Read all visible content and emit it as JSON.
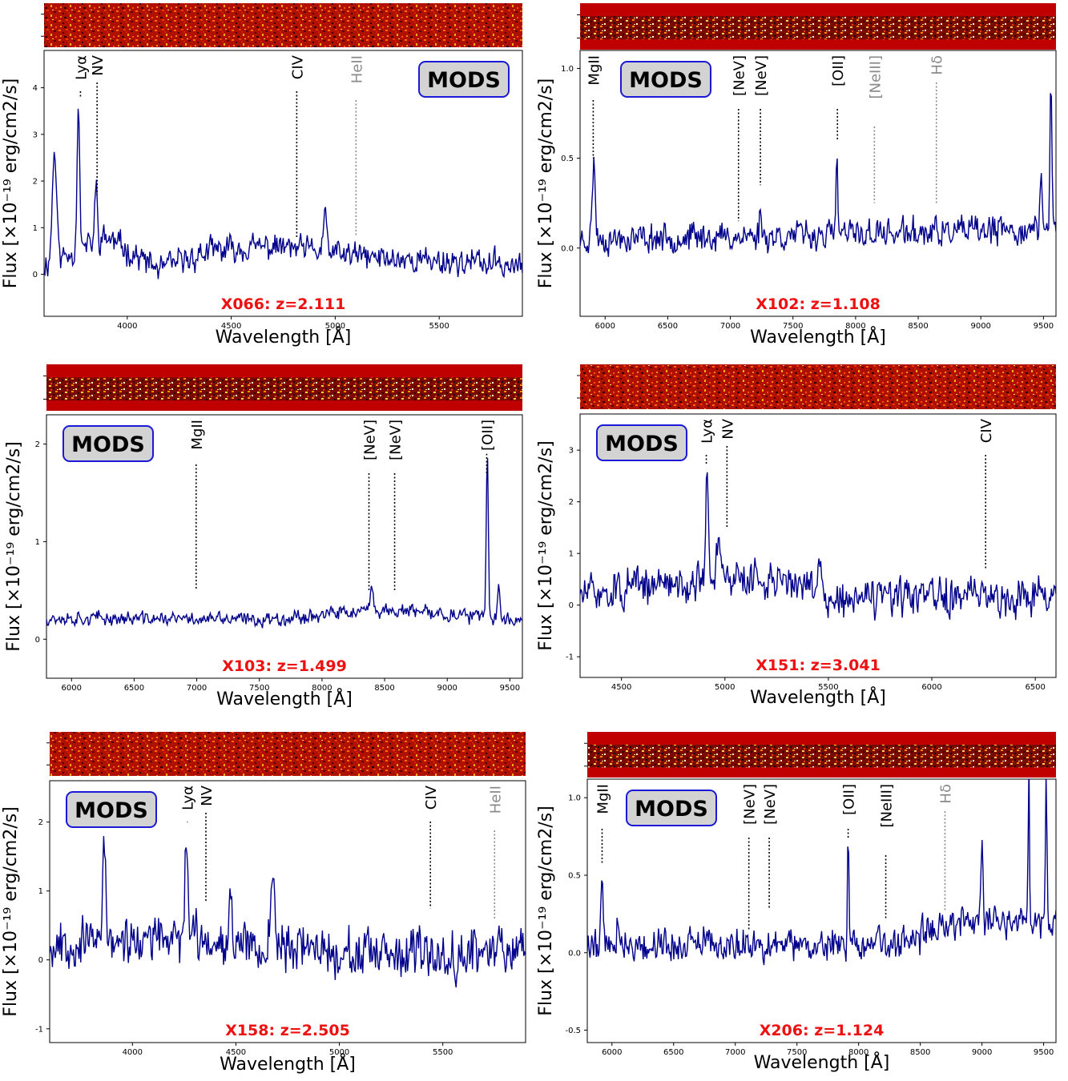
{
  "badge_label": "MODS",
  "colors": {
    "spectrum": "#00008b",
    "line_black": "#000000",
    "line_gray": "#8a8a8a",
    "redshift_label": "#ee1111",
    "badge_fill": "#d3d3d3",
    "badge_border": "#1a1ad6",
    "strip_base": "#c00000"
  },
  "chart_data": [
    {
      "type": "line",
      "object_label": "X066: z=2.111",
      "xlabel": "Wavelength [Å]",
      "ylabel": "Flux [×10⁻¹⁹ erg/cm2/s]",
      "xlim": [
        3600,
        5900
      ],
      "ylim": [
        -0.9,
        4.8
      ],
      "xticks": [
        4000,
        4500,
        5000,
        5500
      ],
      "yticks": [
        0,
        1,
        2,
        3,
        4
      ],
      "mods_position": "top-right",
      "label_position": "bottom-center",
      "strip_style": "noise",
      "series_features": {
        "baseline": [
          [
            3600,
            0.2
          ],
          [
            3900,
            0.8
          ],
          [
            4150,
            0.1
          ],
          [
            4400,
            0.5
          ],
          [
            4700,
            0.6
          ],
          [
            5200,
            0.35
          ],
          [
            5900,
            0.2
          ]
        ],
        "noise": 0.32,
        "seed": 11,
        "peaks": [
          [
            3650,
            2.4,
            10
          ],
          [
            3765,
            3.3,
            6
          ],
          [
            3850,
            1.2,
            6
          ],
          [
            4950,
            0.8,
            8
          ]
        ]
      },
      "lines": [
        {
          "label": "Lyα",
          "x": 3775,
          "y_bottom": 3.8,
          "color": "black"
        },
        {
          "label": "NV",
          "x": 3855,
          "y_bottom": 1.7,
          "color": "black"
        },
        {
          "label": "CIV",
          "x": 4815,
          "y_bottom": 0.8,
          "color": "black"
        },
        {
          "label": "HeII",
          "x": 5100,
          "y_bottom": 0.8,
          "color": "gray"
        }
      ]
    },
    {
      "type": "line",
      "object_label": "X102: z=1.108",
      "xlabel": "Wavelength [Å]",
      "ylabel": "Flux [×10⁻¹⁹ erg/cm2/s]",
      "xlim": [
        5800,
        9600
      ],
      "ylim": [
        -0.38,
        1.1
      ],
      "xticks": [
        6000,
        6500,
        7000,
        7500,
        8000,
        8500,
        9000,
        9500
      ],
      "yticks": [
        0.0,
        0.5,
        1.0
      ],
      "ytick_format": 1,
      "mods_position": "top-left",
      "label_position": "bottom-center",
      "strip_style": "band",
      "series_features": {
        "baseline": [
          [
            5800,
            0.05
          ],
          [
            7500,
            0.07
          ],
          [
            9600,
            0.1
          ]
        ],
        "noise": 0.09,
        "seed": 23,
        "peaks": [
          [
            5910,
            0.42,
            12
          ],
          [
            7850,
            0.5,
            6
          ],
          [
            7240,
            0.15,
            8
          ],
          [
            9560,
            0.8,
            8
          ],
          [
            9480,
            0.35,
            8
          ]
        ]
      },
      "lines": [
        {
          "label": "MgII",
          "x": 5905,
          "y_bottom": 0.5,
          "color": "black"
        },
        {
          "label": "[NeV]",
          "x": 7065,
          "y_bottom": 0.15,
          "color": "black"
        },
        {
          "label": "[NeV]",
          "x": 7240,
          "y_bottom": 0.35,
          "color": "black"
        },
        {
          "label": "[OII]",
          "x": 7855,
          "y_bottom": 0.6,
          "color": "black"
        },
        {
          "label": "[NeIII]",
          "x": 8150,
          "y_bottom": 0.25,
          "color": "gray"
        },
        {
          "label": "Hδ",
          "x": 8645,
          "y_bottom": 0.25,
          "color": "gray"
        }
      ]
    },
    {
      "type": "line",
      "object_label": "X103: z=1.499",
      "xlabel": "Wavelength [Å]",
      "ylabel": "Flux [×10⁻¹⁹ erg/cm2/s]",
      "xlim": [
        5800,
        9600
      ],
      "ylim": [
        -0.4,
        2.3
      ],
      "xticks": [
        6000,
        6500,
        7000,
        7500,
        8000,
        8500,
        9000,
        9500
      ],
      "yticks": [
        0,
        1,
        2
      ],
      "mods_position": "top-left",
      "label_position": "bottom-center",
      "strip_style": "band",
      "series_features": {
        "baseline": [
          [
            5800,
            0.22
          ],
          [
            7500,
            0.2
          ],
          [
            8500,
            0.3
          ],
          [
            9600,
            0.2
          ]
        ],
        "noise": 0.08,
        "seed": 37,
        "peaks": [
          [
            9320,
            1.65,
            8
          ],
          [
            8400,
            0.25,
            10
          ],
          [
            9410,
            0.35,
            8
          ]
        ]
      },
      "lines": [
        {
          "label": "MgII",
          "x": 6995,
          "y_bottom": 0.5,
          "color": "black"
        },
        {
          "label": "[NeV]",
          "x": 8375,
          "y_bottom": 0.5,
          "color": "black"
        },
        {
          "label": "[NeV]",
          "x": 8580,
          "y_bottom": 0.5,
          "color": "black"
        },
        {
          "label": "[OII]",
          "x": 9315,
          "y_bottom": 1.9,
          "color": "black"
        }
      ]
    },
    {
      "type": "line",
      "object_label": "X151: z=3.041",
      "xlabel": "Wavelength [Å]",
      "ylabel": "Flux [×10⁻¹⁹ erg/cm2/s]",
      "xlim": [
        4300,
        6600
      ],
      "ylim": [
        -1.4,
        3.7
      ],
      "xticks": [
        4500,
        5000,
        5500,
        6000,
        6500
      ],
      "yticks": [
        -1,
        0,
        1,
        2,
        3
      ],
      "mods_position": "top-left",
      "label_position": "bottom-center",
      "strip_style": "noise",
      "series_features": {
        "baseline": [
          [
            4300,
            0.2
          ],
          [
            4900,
            0.5
          ],
          [
            5300,
            0.5
          ],
          [
            5500,
            0.1
          ],
          [
            6600,
            0.2
          ]
        ],
        "noise": 0.42,
        "seed": 51,
        "peaks": [
          [
            4915,
            2.1,
            6
          ],
          [
            4970,
            1.0,
            8
          ],
          [
            5460,
            0.9,
            8
          ]
        ]
      },
      "lines": [
        {
          "label": "Lyα",
          "x": 4910,
          "y_bottom": 2.7,
          "color": "black"
        },
        {
          "label": "NV",
          "x": 5010,
          "y_bottom": 1.5,
          "color": "black"
        },
        {
          "label": "CIV",
          "x": 6260,
          "y_bottom": 0.7,
          "color": "black"
        }
      ]
    },
    {
      "type": "line",
      "object_label": "X158: z=2.505",
      "xlabel": "Wavelength [Å]",
      "ylabel": "Flux [×10⁻¹⁹ erg/cm2/s]",
      "xlim": [
        3600,
        5900
      ],
      "ylim": [
        -1.2,
        2.6
      ],
      "xticks": [
        4000,
        4500,
        5000,
        5500
      ],
      "yticks": [
        -1,
        0,
        1,
        2
      ],
      "mods_position": "top-left",
      "label_position": "bottom-center",
      "strip_style": "noise",
      "series_features": {
        "baseline": [
          [
            3600,
            0.25
          ],
          [
            4300,
            0.3
          ],
          [
            4800,
            0.2
          ],
          [
            5200,
            0.0
          ],
          [
            5900,
            0.2
          ]
        ],
        "noise": 0.38,
        "seed": 67,
        "peaks": [
          [
            3865,
            1.5,
            7
          ],
          [
            4260,
            1.7,
            7
          ],
          [
            4680,
            1.0,
            8
          ],
          [
            4475,
            0.8,
            8
          ]
        ]
      },
      "lines": [
        {
          "label": "Lyα",
          "x": 4265,
          "y_bottom": 2.0,
          "color": "black"
        },
        {
          "label": "NV",
          "x": 4355,
          "y_bottom": 0.85,
          "color": "black"
        },
        {
          "label": "CIV",
          "x": 5440,
          "y_bottom": 0.75,
          "color": "black"
        },
        {
          "label": "HeII",
          "x": 5750,
          "y_bottom": 0.6,
          "color": "gray"
        }
      ]
    },
    {
      "type": "line",
      "object_label": "X206: z=1.124",
      "xlabel": "Wavelength [Å]",
      "ylabel": "Flux [×10⁻¹⁹ erg/cm2/s]",
      "xlim": [
        5800,
        9600
      ],
      "ylim": [
        -0.58,
        1.12
      ],
      "xticks": [
        6000,
        6500,
        7000,
        7500,
        8000,
        8500,
        9000,
        9500
      ],
      "yticks": [
        -0.5,
        0.0,
        0.5,
        1.0
      ],
      "ytick_format": 1,
      "mods_position": "top-left",
      "label_position": "bottom-center",
      "strip_style": "band",
      "series_features": {
        "baseline": [
          [
            5800,
            0.05
          ],
          [
            8400,
            0.05
          ],
          [
            8700,
            0.2
          ],
          [
            9600,
            0.2
          ]
        ],
        "noise": 0.12,
        "seed": 79,
        "peaks": [
          [
            5920,
            0.45,
            10
          ],
          [
            7915,
            0.68,
            6
          ],
          [
            6050,
            0.2,
            10
          ],
          [
            9380,
            1.1,
            5
          ],
          [
            9520,
            0.9,
            6
          ],
          [
            9000,
            0.55,
            8
          ]
        ]
      },
      "lines": [
        {
          "label": "MgII",
          "x": 5920,
          "y_bottom": 0.58,
          "color": "black"
        },
        {
          "label": "[NeV]",
          "x": 7110,
          "y_bottom": 0.15,
          "color": "black"
        },
        {
          "label": "[NeV]",
          "x": 7275,
          "y_bottom": 0.28,
          "color": "black"
        },
        {
          "label": "[OII]",
          "x": 7915,
          "y_bottom": 0.8,
          "color": "black"
        },
        {
          "label": "[NeIII]",
          "x": 8220,
          "y_bottom": 0.22,
          "color": "black"
        },
        {
          "label": "Hδ",
          "x": 8700,
          "y_bottom": 0.27,
          "color": "gray"
        }
      ]
    }
  ]
}
